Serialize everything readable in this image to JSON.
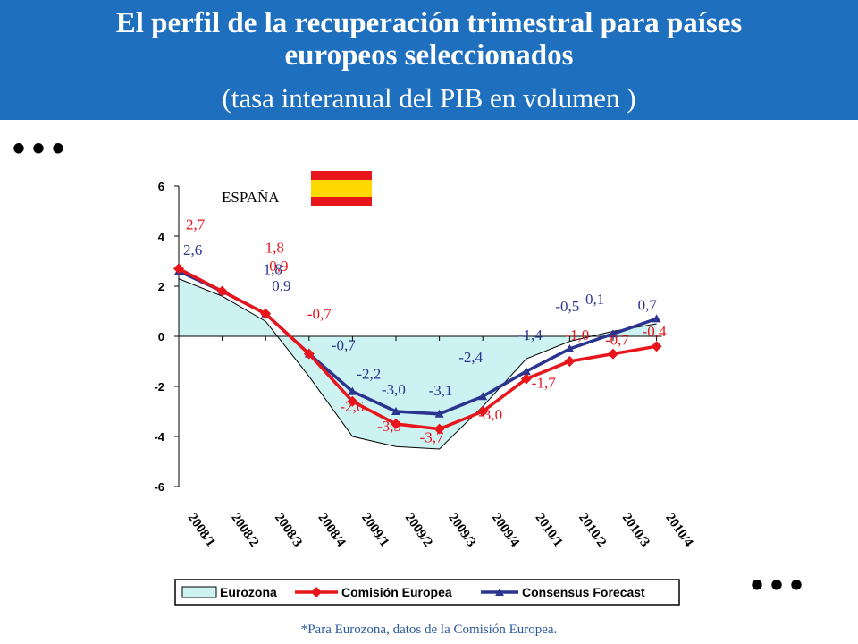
{
  "header": {
    "title_line1": "El perfil de la recuperación trimestral para países",
    "title_line2": "europeos seleccionados",
    "subtitle": "(tasa interanual del PIB en volumen )"
  },
  "decor": {
    "dots": "•••"
  },
  "footnote": "*Para Eurozona, datos de la Comisión Europea.",
  "colors": {
    "header_bg": "#1f6fbf",
    "eurozone_fill": "#ccf2f2",
    "commission": "#e8151c",
    "consensus": "#2b3590",
    "flag_red": "#e8151c",
    "flag_yellow": "#ffd800"
  },
  "chart_data": {
    "type": "line",
    "panel_label": "ESPAÑA",
    "categories": [
      "2008/1",
      "2008/2",
      "2008/3",
      "2008/4",
      "2009/1",
      "2009/2",
      "2009/3",
      "2009/4",
      "2010/1",
      "2010/2",
      "2010/3",
      "2010/4"
    ],
    "ylim": [
      -6,
      6
    ],
    "yticks": [
      "6",
      "4",
      "2",
      "0",
      "-2",
      "-4",
      "-6"
    ],
    "grid": false,
    "legend_position": "bottom",
    "series": [
      {
        "name": "Eurozona",
        "kind": "area",
        "values": [
          2.3,
          1.6,
          0.6,
          -1.6,
          -4.0,
          -4.4,
          -4.5,
          -2.8,
          -0.9,
          -0.2,
          0.2,
          0.5
        ]
      },
      {
        "name": "Comisión Europea",
        "kind": "line",
        "values": [
          2.7,
          1.8,
          0.9,
          -0.7,
          -2.6,
          -3.5,
          -3.7,
          -3.0,
          -1.7,
          -1.0,
          -0.7,
          -0.4
        ],
        "labels": [
          "2,7",
          "1,8",
          "0,9",
          "-0,7",
          "-2,6",
          "-3,5",
          "-3,7",
          "-3,0",
          "-1,7",
          "-1,0",
          "-0,7",
          "-0,4"
        ]
      },
      {
        "name": "Consensus Forecast",
        "kind": "line",
        "values": [
          2.6,
          1.8,
          0.9,
          -0.7,
          -2.2,
          -3.0,
          -3.1,
          -2.4,
          -1.4,
          -0.5,
          0.1,
          0.7
        ],
        "labels": [
          "2,6",
          "1,8",
          "0,9",
          "-0,7",
          "-2,2",
          "-3,0",
          "-3,1",
          "-2,4",
          "-1,4",
          "-0,5",
          "0,1",
          "0,7"
        ]
      }
    ]
  }
}
